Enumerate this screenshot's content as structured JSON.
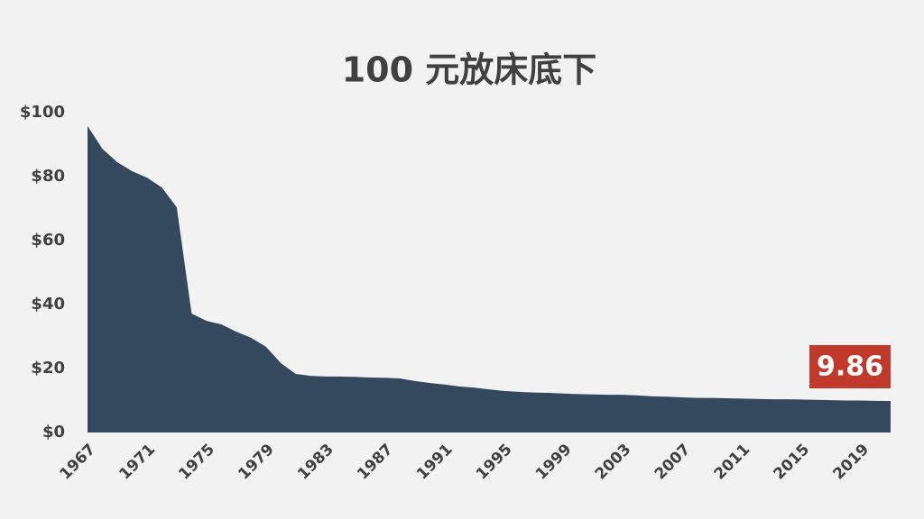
{
  "chart_data": {
    "type": "area",
    "title": "100 元放床底下",
    "x": [
      1967,
      1968,
      1969,
      1970,
      1971,
      1972,
      1973,
      1974,
      1975,
      1976,
      1977,
      1978,
      1979,
      1980,
      1981,
      1982,
      1983,
      1984,
      1985,
      1986,
      1987,
      1988,
      1989,
      1990,
      1991,
      1992,
      1993,
      1994,
      1995,
      1996,
      1997,
      1998,
      1999,
      2000,
      2001,
      2002,
      2003,
      2004,
      2005,
      2006,
      2007,
      2008,
      2009,
      2010,
      2011,
      2012,
      2013,
      2014,
      2015,
      2016,
      2017,
      2018,
      2019,
      2020,
      2021
    ],
    "values": [
      95.8,
      88.7,
      84.5,
      81.7,
      79.7,
      76.6,
      70.4,
      37.2,
      34.9,
      33.8,
      31.5,
      29.6,
      26.8,
      21.7,
      18.3,
      17.7,
      17.5,
      17.5,
      17.4,
      17.2,
      17.1,
      16.9,
      16.1,
      15.5,
      15.0,
      14.4,
      14.0,
      13.5,
      13.0,
      12.7,
      12.5,
      12.4,
      12.2,
      12.0,
      11.9,
      11.8,
      11.8,
      11.6,
      11.3,
      11.2,
      11.0,
      10.8,
      10.8,
      10.7,
      10.6,
      10.5,
      10.4,
      10.4,
      10.3,
      10.2,
      10.1,
      10.0,
      10.0,
      9.9,
      9.86
    ],
    "color": "#34495e",
    "xlim": [
      1967,
      2021
    ],
    "xticks": [
      1967,
      1971,
      1975,
      1979,
      1983,
      1987,
      1991,
      1995,
      1999,
      2003,
      2007,
      2011,
      2015,
      2019
    ],
    "ylim": [
      0,
      100
    ],
    "yticks": [
      {
        "value": 0,
        "label": "$0"
      },
      {
        "value": 20,
        "label": "$20"
      },
      {
        "value": 40,
        "label": "$40"
      },
      {
        "value": 60,
        "label": "$60"
      },
      {
        "value": 80,
        "label": "$80"
      },
      {
        "value": 100,
        "label": "$100"
      }
    ],
    "annotation": "9.86",
    "annotation_color": "#c0392b"
  }
}
